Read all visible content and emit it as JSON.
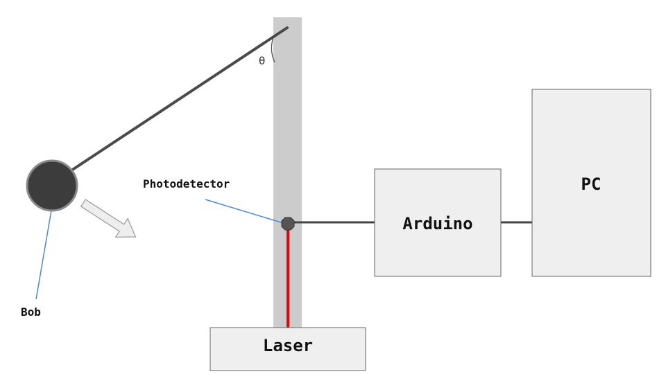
{
  "labels": {
    "theta": "θ",
    "photodetector": "Photodetector",
    "bob": "Bob",
    "laser": "Laser",
    "arduino": "Arduino",
    "pc": "PC"
  },
  "colors": {
    "pole": "#cccccc",
    "rod": "#4a4a4a",
    "bob": "#3c3c3c",
    "bob_stroke": "#8a8a8a",
    "leader": "#4a86e8",
    "laser_beam": "#ee0000",
    "box_fill": "#efefef",
    "box_stroke": "#666666",
    "wire": "#444444",
    "arrow_fill": "#eeeeee",
    "arrow_stroke": "#999999",
    "sensor": "#555555"
  },
  "icons": {
    "motion_arrow": "arrow-right-down-icon"
  }
}
